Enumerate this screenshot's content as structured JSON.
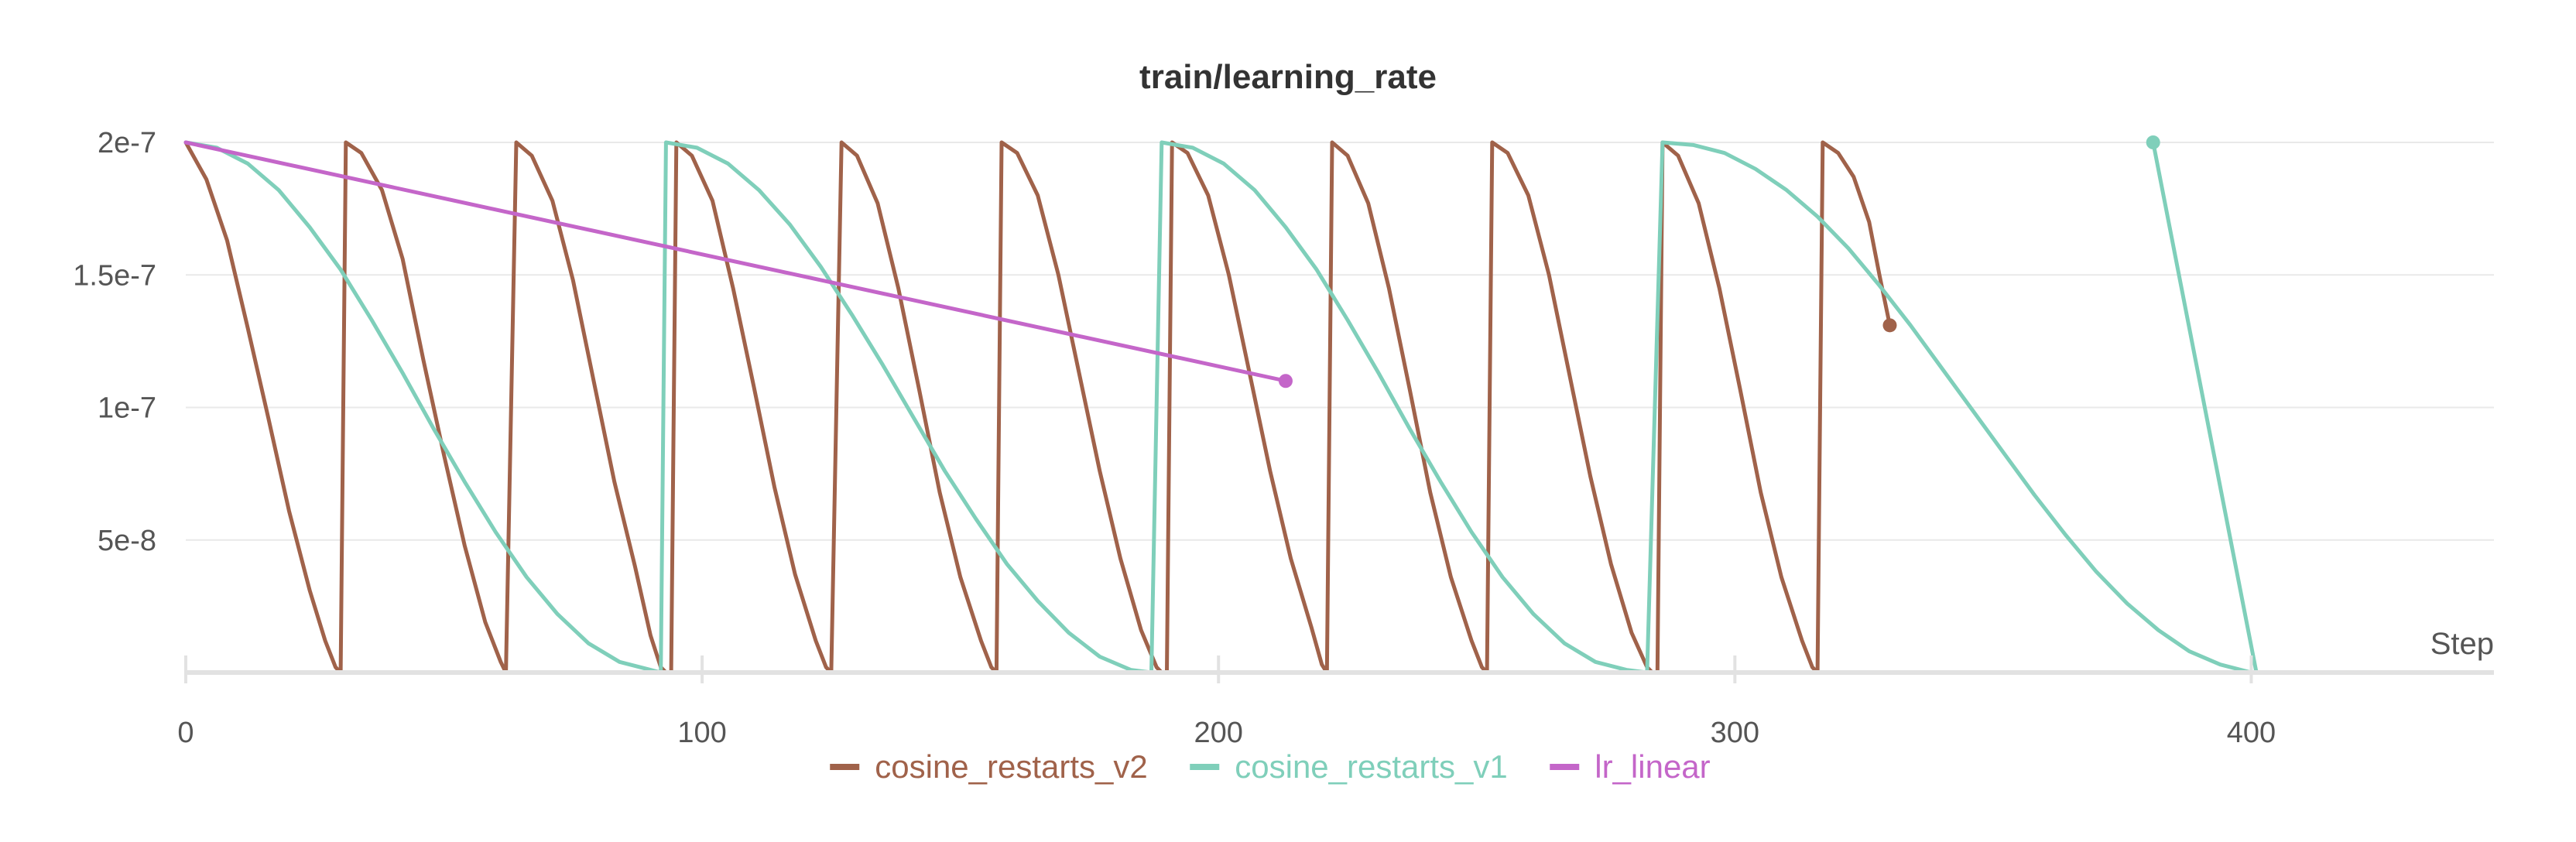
{
  "chart_data": {
    "type": "line",
    "title": "train/learning_rate",
    "xlabel": "Step",
    "ylabel": "",
    "xlim": [
      0,
      447
    ],
    "ylim": [
      0,
      2e-07
    ],
    "x_ticks": [
      0,
      100,
      200,
      300,
      400
    ],
    "x_tick_labels": [
      "0",
      "100",
      "200",
      "300",
      "400"
    ],
    "y_ticks": [
      5e-08,
      1e-07,
      1.5e-07,
      2e-07
    ],
    "y_tick_labels": [
      "5e-8",
      "1e-7",
      "1.5e-7",
      "2e-7"
    ],
    "grid": true,
    "legend_position": "bottom-center",
    "series": [
      {
        "name": "cosine_restarts_v2",
        "color": "#a0624a",
        "end_marker": true,
        "points": [
          [
            0,
            2e-07
          ],
          [
            4,
            1.86e-07
          ],
          [
            8,
            1.63e-07
          ],
          [
            12,
            1.3e-07
          ],
          [
            16,
            9.6e-08
          ],
          [
            20,
            6.1e-08
          ],
          [
            24,
            3.1e-08
          ],
          [
            27,
            1.2e-08
          ],
          [
            29,
            2e-09
          ],
          [
            30,
            0
          ],
          [
            31,
            2e-07
          ],
          [
            34,
            1.96e-07
          ],
          [
            38,
            1.82e-07
          ],
          [
            42,
            1.56e-07
          ],
          [
            46,
            1.18e-07
          ],
          [
            50,
            8.2e-08
          ],
          [
            54,
            4.8e-08
          ],
          [
            58,
            1.9e-08
          ],
          [
            61,
            4e-09
          ],
          [
            62,
            0
          ],
          [
            64,
            2e-07
          ],
          [
            67,
            1.95e-07
          ],
          [
            71,
            1.78e-07
          ],
          [
            75,
            1.48e-07
          ],
          [
            79,
            1.1e-07
          ],
          [
            83,
            7.2e-08
          ],
          [
            87,
            4e-08
          ],
          [
            90,
            1.4e-08
          ],
          [
            92,
            2e-09
          ],
          [
            93,
            0
          ],
          [
            94,
            0
          ],
          [
            95,
            2e-07
          ],
          [
            98,
            1.95e-07
          ],
          [
            102,
            1.78e-07
          ],
          [
            106,
            1.45e-07
          ],
          [
            110,
            1.08e-07
          ],
          [
            114,
            7e-08
          ],
          [
            118,
            3.7e-08
          ],
          [
            122,
            1.2e-08
          ],
          [
            124,
            2e-09
          ],
          [
            125,
            0
          ],
          [
            127,
            2e-07
          ],
          [
            130,
            1.95e-07
          ],
          [
            134,
            1.77e-07
          ],
          [
            138,
            1.45e-07
          ],
          [
            142,
            1.07e-07
          ],
          [
            146,
            6.8e-08
          ],
          [
            150,
            3.6e-08
          ],
          [
            154,
            1.2e-08
          ],
          [
            156,
            2e-09
          ],
          [
            157,
            0
          ],
          [
            158,
            2e-07
          ],
          [
            161,
            1.96e-07
          ],
          [
            165,
            1.8e-07
          ],
          [
            169,
            1.5e-07
          ],
          [
            173,
            1.13e-07
          ],
          [
            177,
            7.6e-08
          ],
          [
            181,
            4.3e-08
          ],
          [
            185,
            1.6e-08
          ],
          [
            188,
            2e-09
          ],
          [
            189,
            0
          ],
          [
            190,
            0
          ],
          [
            191,
            2e-07
          ],
          [
            194,
            1.96e-07
          ],
          [
            198,
            1.8e-07
          ],
          [
            202,
            1.5e-07
          ],
          [
            206,
            1.13e-07
          ],
          [
            210,
            7.6e-08
          ],
          [
            214,
            4.3e-08
          ],
          [
            218,
            1.7e-08
          ],
          [
            220,
            3e-09
          ],
          [
            221,
            0
          ],
          [
            222,
            2e-07
          ],
          [
            225,
            1.95e-07
          ],
          [
            229,
            1.77e-07
          ],
          [
            233,
            1.45e-07
          ],
          [
            237,
            1.07e-07
          ],
          [
            241,
            6.8e-08
          ],
          [
            245,
            3.6e-08
          ],
          [
            249,
            1.2e-08
          ],
          [
            251,
            2e-09
          ],
          [
            252,
            0
          ],
          [
            253,
            2e-07
          ],
          [
            256,
            1.96e-07
          ],
          [
            260,
            1.8e-07
          ],
          [
            264,
            1.5e-07
          ],
          [
            268,
            1.12e-07
          ],
          [
            272,
            7.4e-08
          ],
          [
            276,
            4.1e-08
          ],
          [
            280,
            1.5e-08
          ],
          [
            283,
            2e-09
          ],
          [
            284,
            0
          ],
          [
            285,
            0
          ],
          [
            286,
            2e-07
          ],
          [
            289,
            1.95e-07
          ],
          [
            293,
            1.77e-07
          ],
          [
            297,
            1.45e-07
          ],
          [
            301,
            1.07e-07
          ],
          [
            305,
            6.8e-08
          ],
          [
            309,
            3.6e-08
          ],
          [
            313,
            1.2e-08
          ],
          [
            315,
            2e-09
          ],
          [
            316,
            0
          ],
          [
            317,
            2e-07
          ],
          [
            320,
            1.96e-07
          ],
          [
            323,
            1.87e-07
          ],
          [
            326,
            1.7e-07
          ],
          [
            328,
            1.5e-07
          ],
          [
            330,
            1.31e-07
          ]
        ]
      },
      {
        "name": "cosine_restarts_v1",
        "color": "#7fcfba",
        "end_marker": true,
        "points": [
          [
            0,
            2e-07
          ],
          [
            6,
            1.98e-07
          ],
          [
            12,
            1.92e-07
          ],
          [
            18,
            1.82e-07
          ],
          [
            24,
            1.68e-07
          ],
          [
            30,
            1.52e-07
          ],
          [
            36,
            1.33e-07
          ],
          [
            42,
            1.13e-07
          ],
          [
            48,
            9.2e-08
          ],
          [
            54,
            7.2e-08
          ],
          [
            60,
            5.3e-08
          ],
          [
            66,
            3.6e-08
          ],
          [
            72,
            2.2e-08
          ],
          [
            78,
            1.1e-08
          ],
          [
            84,
            4e-09
          ],
          [
            90,
            1e-09
          ],
          [
            92,
            0
          ],
          [
            93,
            2e-07
          ],
          [
            99,
            1.98e-07
          ],
          [
            105,
            1.92e-07
          ],
          [
            111,
            1.82e-07
          ],
          [
            117,
            1.69e-07
          ],
          [
            123,
            1.53e-07
          ],
          [
            129,
            1.35e-07
          ],
          [
            135,
            1.16e-07
          ],
          [
            141,
            9.6e-08
          ],
          [
            147,
            7.6e-08
          ],
          [
            153,
            5.8e-08
          ],
          [
            159,
            4.1e-08
          ],
          [
            165,
            2.7e-08
          ],
          [
            171,
            1.5e-08
          ],
          [
            177,
            6e-09
          ],
          [
            183,
            1e-09
          ],
          [
            187,
            0
          ],
          [
            189,
            2e-07
          ],
          [
            195,
            1.98e-07
          ],
          [
            201,
            1.92e-07
          ],
          [
            207,
            1.82e-07
          ],
          [
            213,
            1.68e-07
          ],
          [
            219,
            1.52e-07
          ],
          [
            225,
            1.33e-07
          ],
          [
            231,
            1.13e-07
          ],
          [
            237,
            9.2e-08
          ],
          [
            243,
            7.2e-08
          ],
          [
            249,
            5.3e-08
          ],
          [
            255,
            3.6e-08
          ],
          [
            261,
            2.2e-08
          ],
          [
            267,
            1.1e-08
          ],
          [
            273,
            4e-09
          ],
          [
            279,
            1e-09
          ],
          [
            283,
            0
          ],
          [
            286,
            2e-07
          ],
          [
            292,
            1.99e-07
          ],
          [
            298,
            1.96e-07
          ],
          [
            304,
            1.9e-07
          ],
          [
            310,
            1.82e-07
          ],
          [
            316,
            1.72e-07
          ],
          [
            322,
            1.6e-07
          ],
          [
            328,
            1.46e-07
          ],
          [
            334,
            1.31e-07
          ],
          [
            340,
            1.15e-07
          ],
          [
            346,
            9.9e-08
          ],
          [
            352,
            8.3e-08
          ],
          [
            358,
            6.7e-08
          ],
          [
            364,
            5.2e-08
          ],
          [
            370,
            3.8e-08
          ],
          [
            376,
            2.6e-08
          ],
          [
            382,
            1.6e-08
          ],
          [
            388,
            8e-09
          ],
          [
            394,
            3e-09
          ],
          [
            400,
            0
          ],
          [
            401,
            0
          ],
          [
            381,
            2e-07
          ]
        ]
      },
      {
        "name": "lr_linear",
        "color": "#c466c9",
        "end_marker": true,
        "points": [
          [
            0,
            2e-07
          ],
          [
            213,
            1.1e-07
          ]
        ]
      }
    ]
  }
}
